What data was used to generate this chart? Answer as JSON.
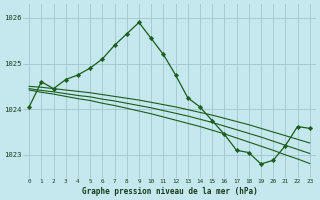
{
  "title": "Graphe pression niveau de la mer (hPa)",
  "bg_color": "#c5e8ef",
  "grid_color": "#9abfc8",
  "line_color": "#1a5c1a",
  "hours": [
    0,
    1,
    2,
    3,
    4,
    5,
    6,
    7,
    8,
    9,
    10,
    11,
    12,
    13,
    14,
    15,
    16,
    17,
    18,
    19,
    20,
    21,
    22,
    23
  ],
  "curve_main": [
    1024.05,
    1024.6,
    1024.45,
    1024.65,
    1024.75,
    1024.9,
    1025.1,
    1025.4,
    1025.65,
    1025.9,
    1025.55,
    1025.2,
    1024.75,
    1024.25,
    1024.05,
    1023.75,
    1023.45,
    1023.1,
    1023.05,
    1022.8,
    1022.88,
    1023.2,
    1023.62,
    1023.58
  ],
  "straight_1": [
    1024.5,
    1024.48,
    1024.45,
    1024.42,
    1024.39,
    1024.36,
    1024.32,
    1024.28,
    1024.24,
    1024.2,
    1024.15,
    1024.1,
    1024.05,
    1023.99,
    1023.93,
    1023.87,
    1023.8,
    1023.73,
    1023.66,
    1023.58,
    1023.5,
    1023.42,
    1023.34,
    1023.26
  ],
  "straight_2": [
    1024.45,
    1024.41,
    1024.38,
    1024.34,
    1024.3,
    1024.27,
    1024.22,
    1024.18,
    1024.13,
    1024.08,
    1024.03,
    1023.97,
    1023.91,
    1023.85,
    1023.78,
    1023.71,
    1023.63,
    1023.55,
    1023.47,
    1023.39,
    1023.3,
    1023.21,
    1023.12,
    1023.03
  ],
  "straight_3": [
    1024.42,
    1024.37,
    1024.33,
    1024.28,
    1024.23,
    1024.19,
    1024.13,
    1024.08,
    1024.02,
    1023.96,
    1023.9,
    1023.83,
    1023.76,
    1023.69,
    1023.62,
    1023.54,
    1023.46,
    1023.37,
    1023.28,
    1023.19,
    1023.1,
    1023.0,
    1022.91,
    1022.81
  ],
  "ylim": [
    1022.5,
    1026.3
  ],
  "yticks": [
    1023,
    1024,
    1025,
    1026
  ],
  "xlim": [
    -0.5,
    23.5
  ]
}
